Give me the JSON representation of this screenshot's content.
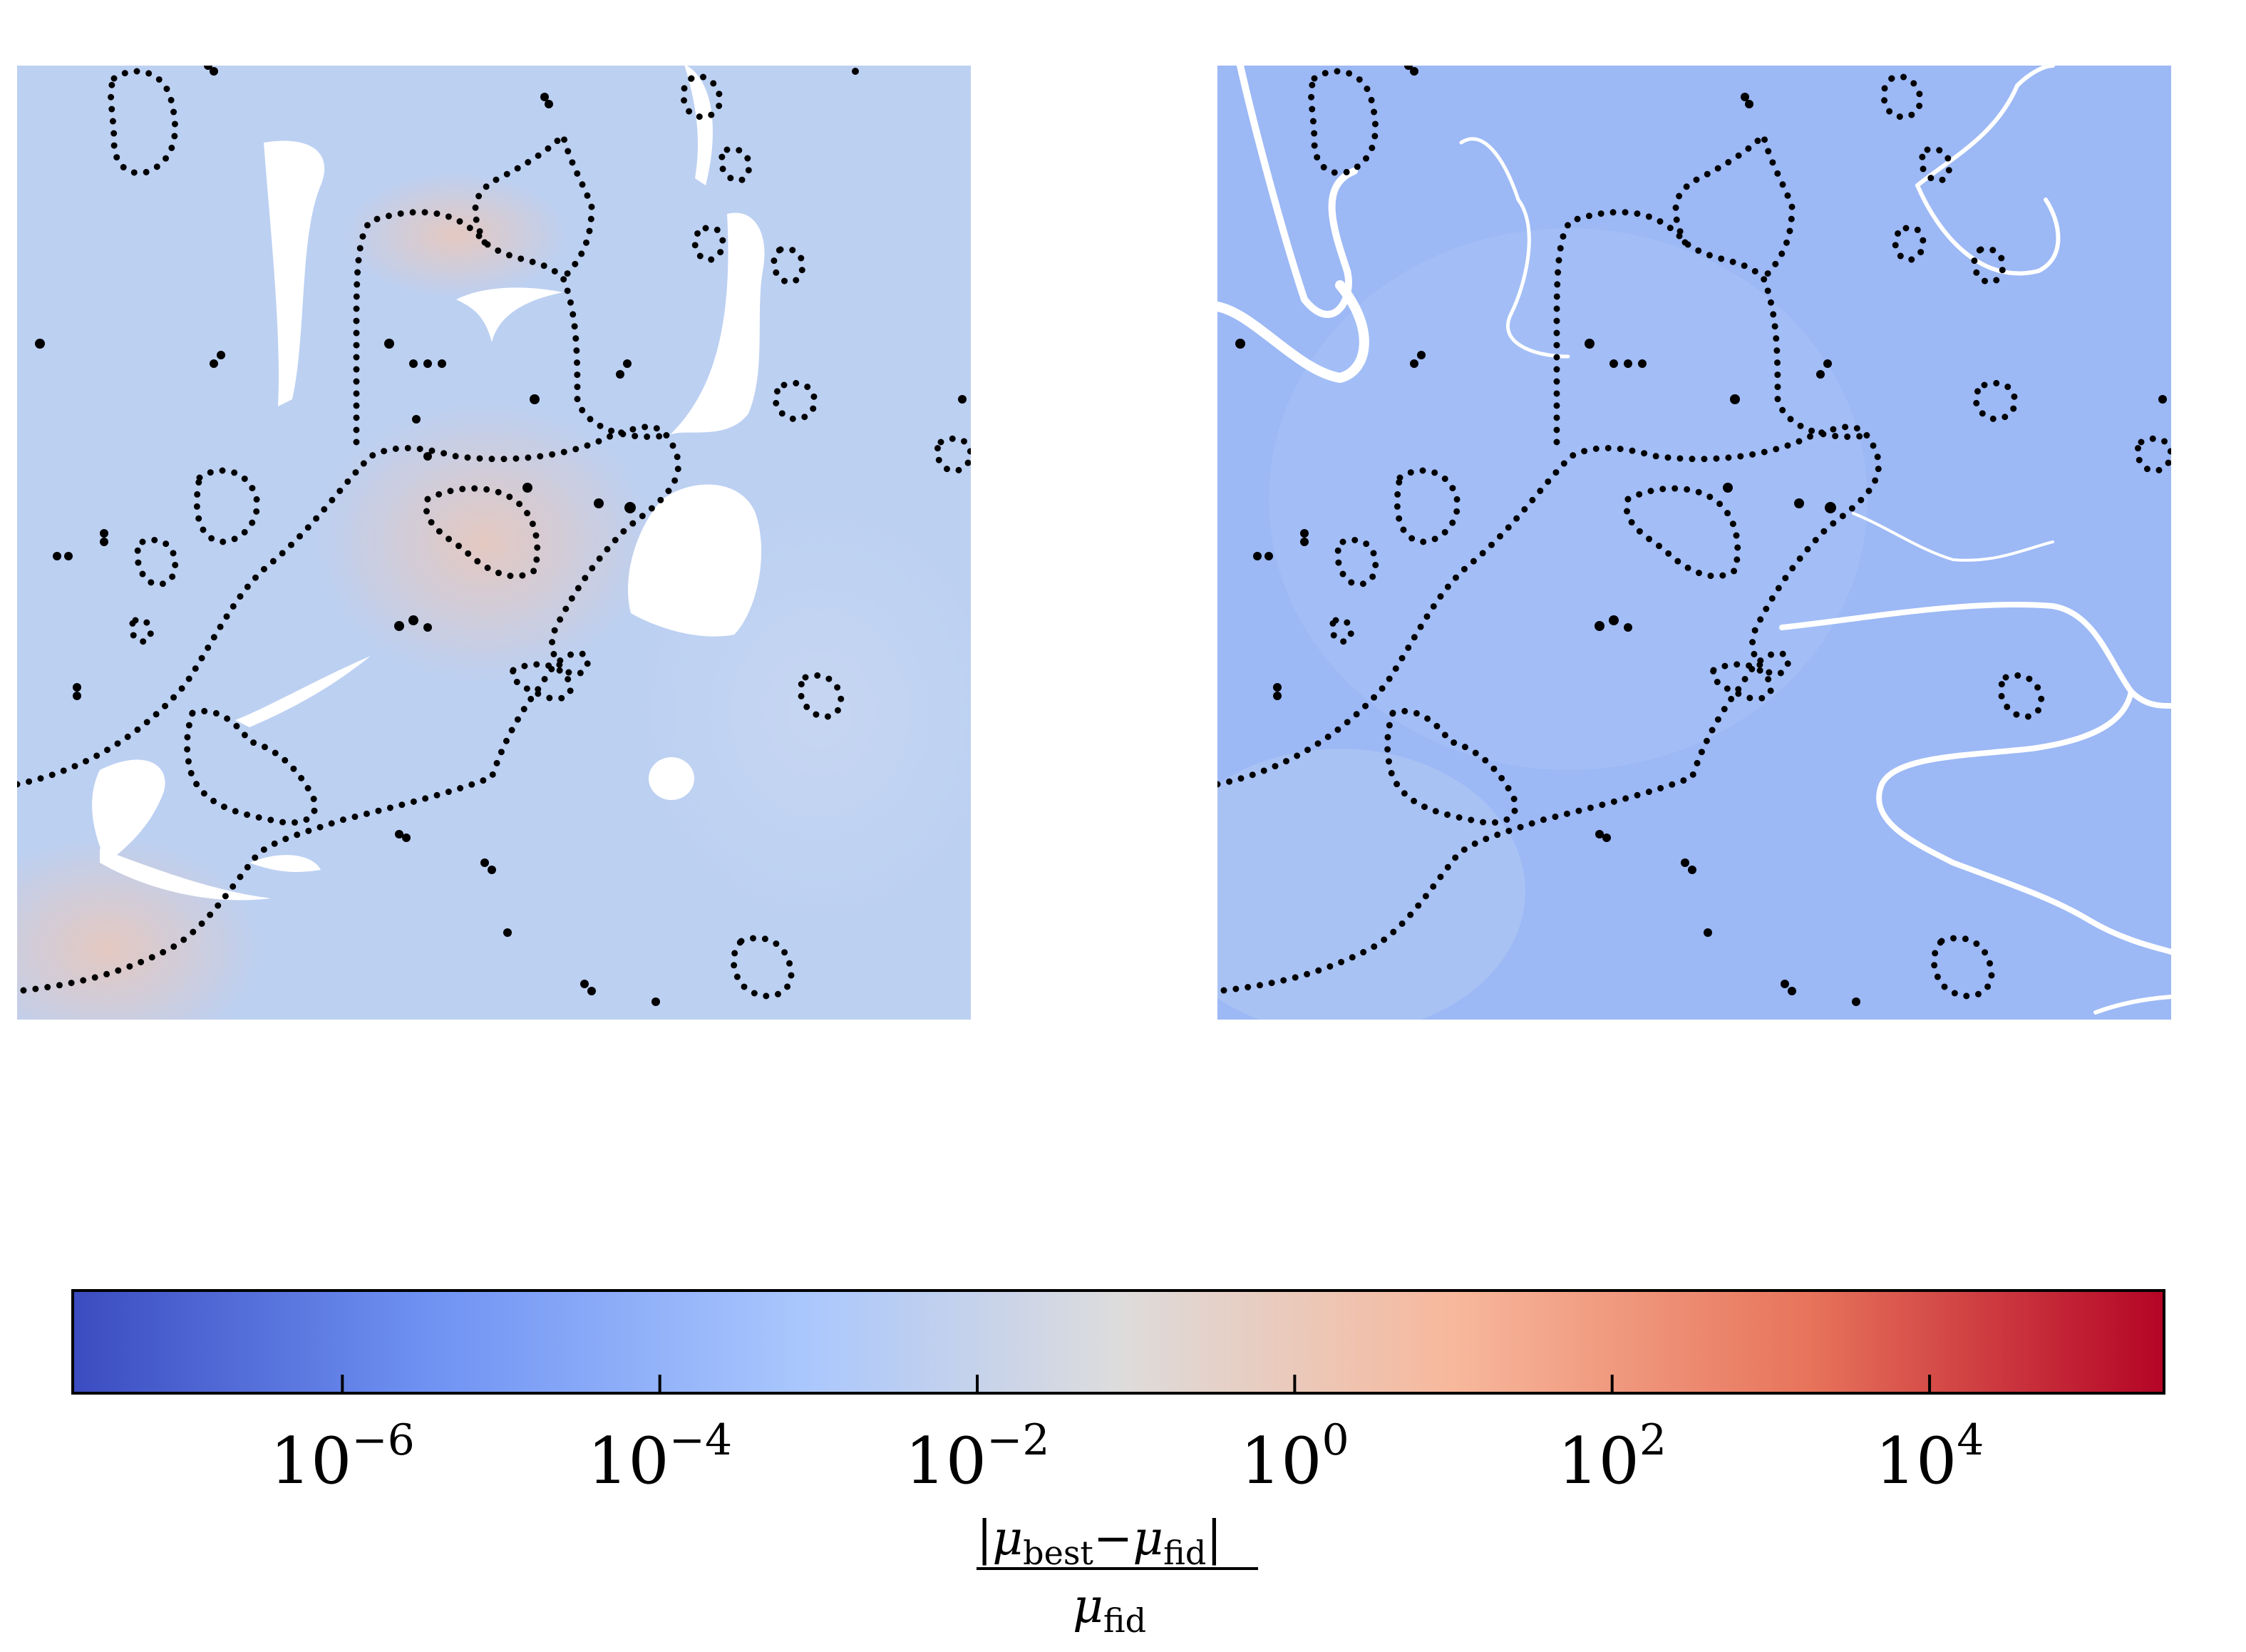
{
  "chart_data": [
    {
      "type": "heatmap",
      "panel": "left",
      "title": "",
      "xlabel": "",
      "ylabel": "",
      "axes_visible": false,
      "colormap": "coolwarm",
      "scale": "log",
      "background_level": "1e-2",
      "overlay": "critical curves (dotted black)"
    },
    {
      "type": "heatmap",
      "panel": "right",
      "title": "",
      "xlabel": "",
      "ylabel": "",
      "axes_visible": false,
      "colormap": "coolwarm",
      "scale": "log",
      "background_level": "1e-4",
      "overlay": "critical curves (dotted black)"
    }
  ],
  "colorbar": {
    "orientation": "horizontal",
    "scale": "log",
    "range": [
      2e-08,
      300000.0
    ],
    "ticks": [
      {
        "value": 1e-06,
        "base": "10",
        "exp": "−6"
      },
      {
        "value": 0.0001,
        "base": "10",
        "exp": "−4"
      },
      {
        "value": 0.01,
        "base": "10",
        "exp": "−2"
      },
      {
        "value": 1.0,
        "base": "10",
        "exp": "0"
      },
      {
        "value": 100.0,
        "base": "10",
        "exp": "2"
      },
      {
        "value": 10000.0,
        "base": "10",
        "exp": "4"
      }
    ],
    "label": {
      "numerator_open": "|",
      "mu_symbol": "μ",
      "sub_best": "best",
      "minus": "−",
      "sub_fid": "fid",
      "numerator_close": "|"
    },
    "colors": [
      "#3b4cc0",
      "#6f92f3",
      "#aac7fd",
      "#dddddd",
      "#f7b89c",
      "#e7745b",
      "#b40426"
    ]
  },
  "overlay_color": "#000000"
}
